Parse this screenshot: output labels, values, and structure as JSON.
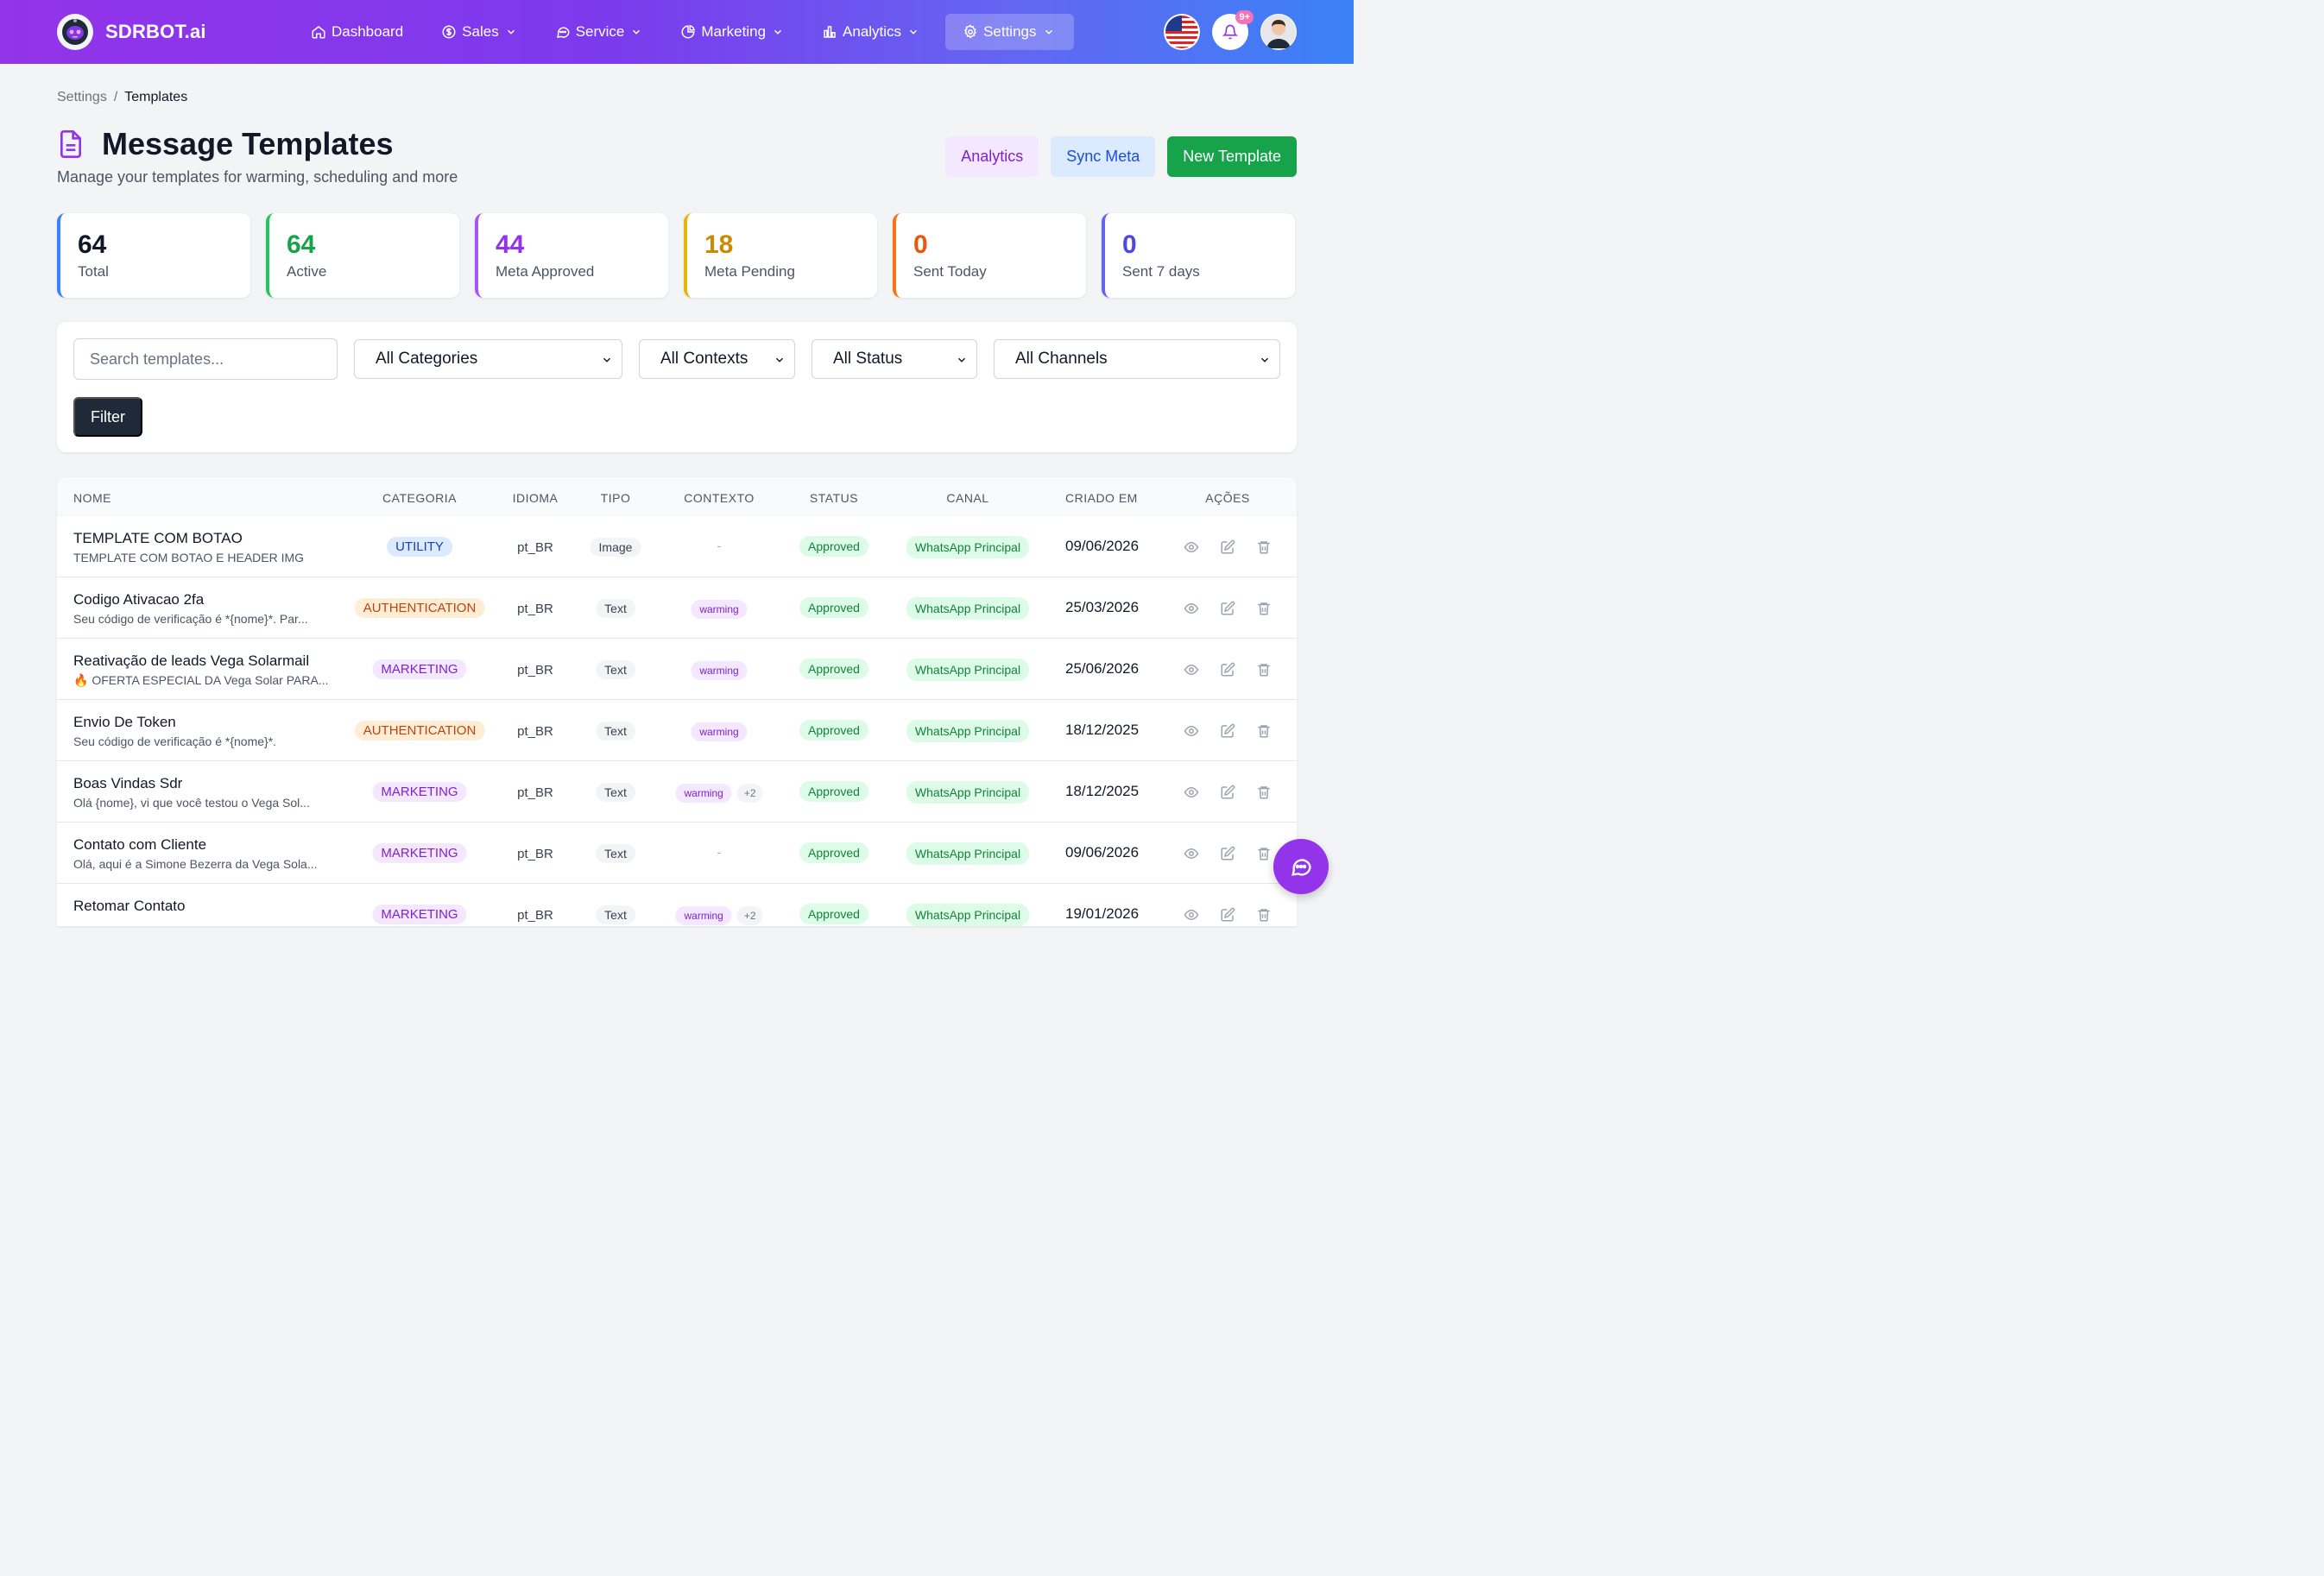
{
  "brand": {
    "name": "SDRBOT.ai"
  },
  "nav": {
    "items": [
      {
        "label": "Dashboard",
        "icon": "home-icon",
        "dropdown": false
      },
      {
        "label": "Sales",
        "icon": "dollar-icon",
        "dropdown": true
      },
      {
        "label": "Service",
        "icon": "chat-icon",
        "dropdown": true
      },
      {
        "label": "Marketing",
        "icon": "pie-chart-icon",
        "dropdown": true
      },
      {
        "label": "Analytics",
        "icon": "bar-chart-icon",
        "dropdown": true
      },
      {
        "label": "Settings",
        "icon": "gear-icon",
        "dropdown": true,
        "active": true
      }
    ],
    "notifications": "9+"
  },
  "breadcrumb": {
    "parent": "Settings",
    "separator": "/",
    "current": "Templates"
  },
  "header": {
    "title": "Message Templates",
    "subtitle": "Manage your templates for warming, scheduling and more",
    "btn_analytics": "Analytics",
    "btn_sync": "Sync Meta",
    "btn_new": "New Template"
  },
  "stats": [
    {
      "value": "64",
      "label": "Total",
      "color": "#3b82f6",
      "text_color": "#111827"
    },
    {
      "value": "64",
      "label": "Active",
      "color": "#22c55e",
      "text_color": "#16a34a"
    },
    {
      "value": "44",
      "label": "Meta Approved",
      "color": "#a855f7",
      "text_color": "#9333ea"
    },
    {
      "value": "18",
      "label": "Meta Pending",
      "color": "#eab308",
      "text_color": "#ca8a04"
    },
    {
      "value": "0",
      "label": "Sent Today",
      "color": "#f97316",
      "text_color": "#ea580c"
    },
    {
      "value": "0",
      "label": "Sent 7 days",
      "color": "#6366f1",
      "text_color": "#4f46e5"
    }
  ],
  "filters": {
    "search_placeholder": "Search templates...",
    "category": "All Categories",
    "context": "All Contexts",
    "status": "All Status",
    "channel": "All Channels",
    "filter_button": "Filter"
  },
  "table": {
    "headers": {
      "nome": "NOME",
      "categoria": "CATEGORIA",
      "idioma": "IDIOMA",
      "tipo": "TIPO",
      "contexto": "CONTEXTO",
      "status": "STATUS",
      "canal": "CANAL",
      "criado": "CRIADO EM",
      "acoes": "AÇÕES"
    },
    "rows": [
      {
        "name": "TEMPLATE COM BOTAO",
        "desc": "TEMPLATE COM BOTAO E HEADER IMG",
        "category": "UTILITY",
        "language": "pt_BR",
        "type": "Image",
        "context": "-",
        "context_more": "",
        "status": "Approved",
        "channel": "WhatsApp Principal",
        "created": "09/06/2026"
      },
      {
        "name": "Codigo Ativacao 2fa",
        "desc": "Seu código de verificação é *{nome}*. Par...",
        "category": "AUTHENTICATION",
        "language": "pt_BR",
        "type": "Text",
        "context": "warming",
        "context_more": "",
        "status": "Approved",
        "channel": "WhatsApp Principal",
        "created": "25/03/2026"
      },
      {
        "name": "Reativação de leads Vega Solarmail",
        "desc": "🔥 OFERTA ESPECIAL DA Vega Solar PARA...",
        "category": "MARKETING",
        "language": "pt_BR",
        "type": "Text",
        "context": "warming",
        "context_more": "",
        "status": "Approved",
        "channel": "WhatsApp Principal",
        "created": "25/06/2026"
      },
      {
        "name": "Envio De Token",
        "desc": "Seu código de verificação é *{nome}*.",
        "category": "AUTHENTICATION",
        "language": "pt_BR",
        "type": "Text",
        "context": "warming",
        "context_more": "",
        "status": "Approved",
        "channel": "WhatsApp Principal",
        "created": "18/12/2025"
      },
      {
        "name": "Boas Vindas Sdr",
        "desc": "Olá {nome}, vi que você testou o Vega Sol...",
        "category": "MARKETING",
        "language": "pt_BR",
        "type": "Text",
        "context": "warming",
        "context_more": "+2",
        "status": "Approved",
        "channel": "WhatsApp Principal",
        "created": "18/12/2025"
      },
      {
        "name": "Contato com Cliente",
        "desc": "Olá, aqui é a Simone Bezerra da Vega Sola...",
        "category": "MARKETING",
        "language": "pt_BR",
        "type": "Text",
        "context": "-",
        "context_more": "",
        "status": "Approved",
        "channel": "WhatsApp Principal",
        "created": "09/06/2026"
      },
      {
        "name": "Retomar Contato",
        "desc": "",
        "category": "MARKETING",
        "language": "pt_BR",
        "type": "Text",
        "context": "warming",
        "context_more": "+2",
        "status": "Approved",
        "channel": "WhatsApp Principal",
        "created": "19/01/2026"
      }
    ]
  }
}
